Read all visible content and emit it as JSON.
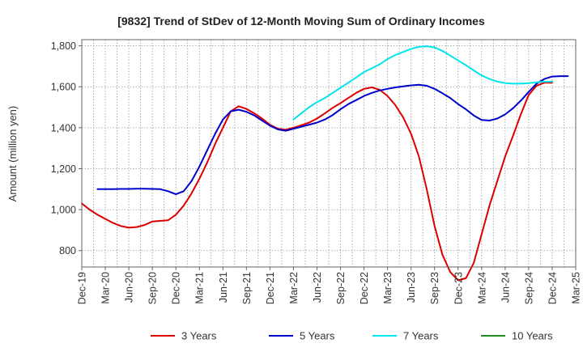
{
  "chart_data": {
    "type": "line",
    "title": "[9832]  Trend of StDev of 12-Month Moving Sum of Ordinary Incomes",
    "xlabel": "",
    "ylabel": "Amount (million yen)",
    "ylim": [
      720,
      1830
    ],
    "yticks": [
      800,
      1000,
      1200,
      1400,
      1600,
      1800
    ],
    "ytick_labels": [
      "800",
      "1,000",
      "1,200",
      "1,400",
      "1,600",
      "1,800"
    ],
    "x_start": "Dec-19",
    "x_end": "Mar-25",
    "xtick_labels": [
      "Dec-19",
      "Mar-20",
      "Jun-20",
      "Sep-20",
      "Dec-20",
      "Mar-21",
      "Jun-21",
      "Sep-21",
      "Dec-21",
      "Mar-22",
      "Jun-22",
      "Sep-22",
      "Dec-22",
      "Mar-23",
      "Jun-23",
      "Sep-23",
      "Dec-23",
      "Mar-24",
      "Jun-24",
      "Sep-24",
      "Dec-24",
      "Mar-25"
    ],
    "grid": true,
    "legend_position": "bottom",
    "series": [
      {
        "name": "3 Years",
        "color": "#dd0000",
        "start_month": 0,
        "values": [
          1030,
          1000,
          975,
          955,
          935,
          920,
          912,
          915,
          925,
          942,
          945,
          948,
          975,
          1020,
          1080,
          1150,
          1230,
          1320,
          1400,
          1480,
          1505,
          1492,
          1470,
          1445,
          1415,
          1395,
          1390,
          1400,
          1412,
          1425,
          1445,
          1470,
          1497,
          1520,
          1545,
          1570,
          1590,
          1597,
          1585,
          1555,
          1510,
          1450,
          1370,
          1260,
          1100,
          920,
          780,
          695,
          655,
          665,
          740,
          880,
          1020,
          1140,
          1260,
          1360,
          1465,
          1560,
          1605,
          1620,
          1620
        ]
      },
      {
        "name": "5 Years",
        "color": "#0000cc",
        "start_month": 2,
        "values": [
          1100,
          1100,
          1100,
          1101,
          1101,
          1102,
          1102,
          1101,
          1100,
          1090,
          1075,
          1090,
          1140,
          1210,
          1290,
          1370,
          1440,
          1480,
          1488,
          1478,
          1460,
          1435,
          1410,
          1392,
          1385,
          1395,
          1405,
          1415,
          1425,
          1440,
          1462,
          1490,
          1515,
          1535,
          1555,
          1570,
          1582,
          1590,
          1597,
          1602,
          1607,
          1610,
          1605,
          1590,
          1568,
          1545,
          1515,
          1490,
          1460,
          1438,
          1435,
          1445,
          1465,
          1495,
          1532,
          1575,
          1615,
          1638,
          1650,
          1652,
          1652
        ]
      },
      {
        "name": "7 Years",
        "color": "#00e5ee",
        "start_month": 27,
        "values": [
          1440,
          1470,
          1500,
          1525,
          1545,
          1570,
          1595,
          1620,
          1645,
          1672,
          1690,
          1710,
          1735,
          1755,
          1770,
          1785,
          1795,
          1798,
          1792,
          1775,
          1752,
          1728,
          1705,
          1680,
          1655,
          1638,
          1625,
          1618,
          1615,
          1615,
          1618,
          1622,
          1625,
          1625
        ]
      },
      {
        "name": "10 Years",
        "color": "#228b22",
        "start_month": 0,
        "values": []
      }
    ]
  }
}
